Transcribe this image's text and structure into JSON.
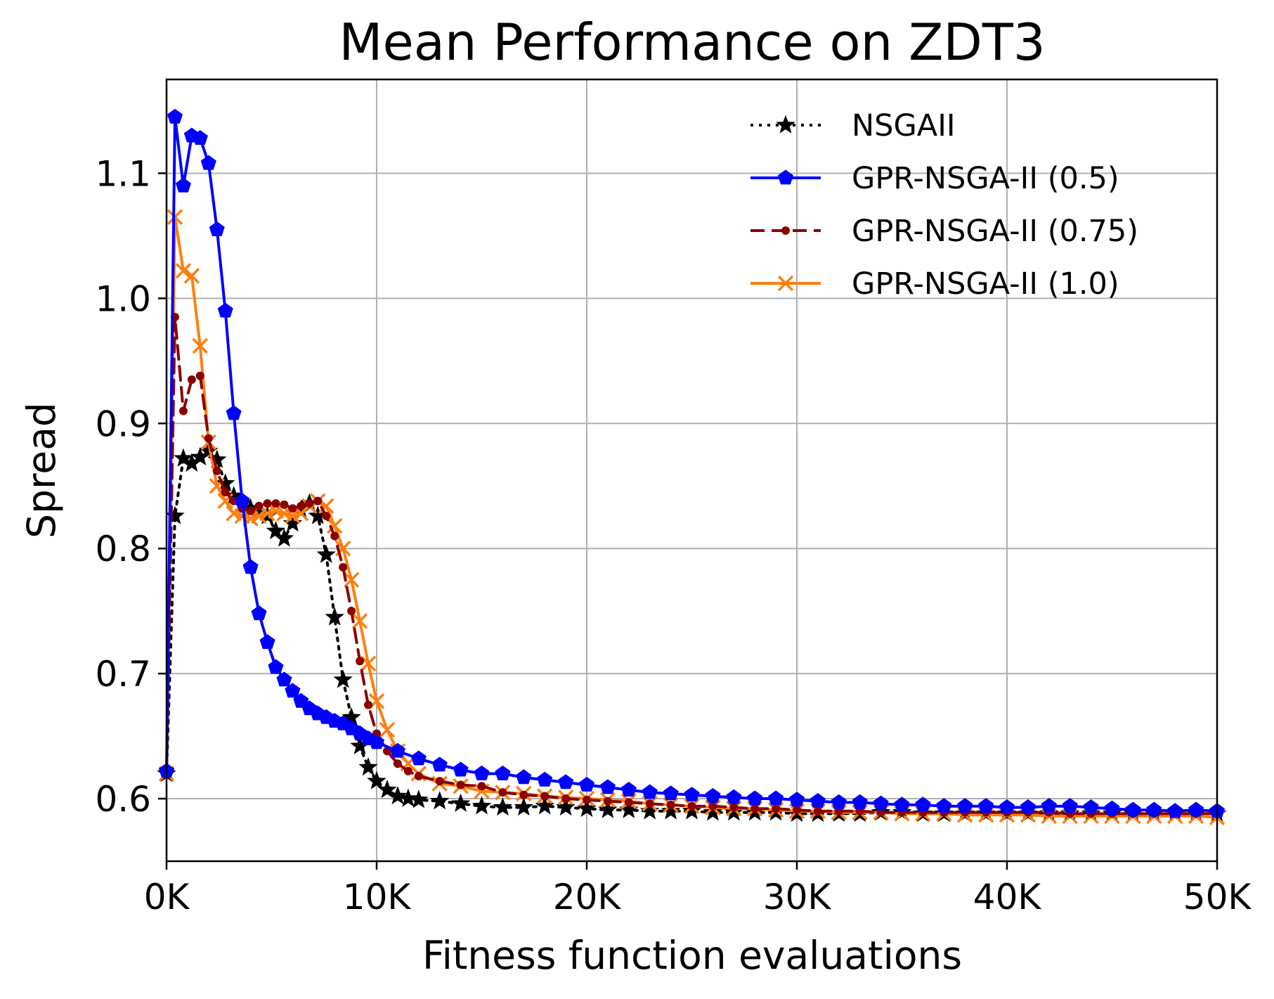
{
  "chart_data": {
    "type": "line",
    "title": "Mean Performance on ZDT3",
    "xlabel": "Fitness function evaluations",
    "ylabel": "Spread",
    "xlim": [
      0,
      50000
    ],
    "ylim": [
      0.55,
      1.175
    ],
    "grid": true,
    "legend_position": "top-right",
    "x_ticks": [
      {
        "value": 0,
        "label": "0K"
      },
      {
        "value": 10000,
        "label": "10K"
      },
      {
        "value": 20000,
        "label": "20K"
      },
      {
        "value": 30000,
        "label": "30K"
      },
      {
        "value": 40000,
        "label": "40K"
      },
      {
        "value": 50000,
        "label": "50K"
      }
    ],
    "y_ticks": [
      {
        "value": 0.6,
        "label": "0.6"
      },
      {
        "value": 0.7,
        "label": "0.7"
      },
      {
        "value": 0.8,
        "label": "0.8"
      },
      {
        "value": 0.9,
        "label": "0.9"
      },
      {
        "value": 1.0,
        "label": "1.0"
      },
      {
        "value": 1.1,
        "label": "1.1"
      }
    ],
    "series": [
      {
        "name": "NSGAII",
        "color": "#000000",
        "line_style": "dotted",
        "marker": "star",
        "x": [
          0,
          400,
          800,
          1200,
          1600,
          2000,
          2400,
          2800,
          3200,
          3600,
          4000,
          4400,
          4800,
          5200,
          5600,
          6000,
          6400,
          6800,
          7200,
          7600,
          8000,
          8400,
          8800,
          9200,
          9600,
          10000,
          10500,
          11000,
          11500,
          12000,
          13000,
          14000,
          15000,
          16000,
          17000,
          18000,
          19000,
          20000,
          21000,
          22000,
          23000,
          24000,
          25000,
          26000,
          27000,
          28000,
          29000,
          30000,
          31000,
          32000,
          33000,
          34000,
          35000,
          36000,
          37000,
          38000,
          39000,
          40000,
          41000,
          42000,
          43000,
          44000,
          45000,
          46000,
          47000,
          48000,
          49000,
          50000
        ],
        "values": [
          0.62,
          0.826,
          0.872,
          0.868,
          0.873,
          0.878,
          0.871,
          0.852,
          0.842,
          0.836,
          0.832,
          0.828,
          0.826,
          0.814,
          0.808,
          0.82,
          0.83,
          0.836,
          0.826,
          0.795,
          0.745,
          0.695,
          0.665,
          0.642,
          0.625,
          0.614,
          0.607,
          0.602,
          0.6,
          0.599,
          0.598,
          0.596,
          0.594,
          0.593,
          0.593,
          0.594,
          0.593,
          0.592,
          0.591,
          0.591,
          0.59,
          0.59,
          0.59,
          0.589,
          0.589,
          0.589,
          0.589,
          0.588,
          0.588,
          0.588,
          0.588,
          0.589,
          0.589,
          0.588,
          0.588,
          0.588,
          0.588,
          0.588,
          0.588,
          0.588,
          0.588,
          0.588,
          0.588,
          0.588,
          0.588,
          0.588,
          0.588,
          0.588
        ]
      },
      {
        "name": "GPR-NSGA-II (0.5)",
        "color": "#0000ff",
        "line_style": "solid",
        "marker": "pentagon",
        "x": [
          0,
          400,
          800,
          1200,
          1600,
          2000,
          2400,
          2800,
          3200,
          3600,
          4000,
          4400,
          4800,
          5200,
          5600,
          6000,
          6400,
          6800,
          7200,
          7600,
          8000,
          8400,
          8800,
          9200,
          9600,
          10000,
          11000,
          12000,
          13000,
          14000,
          15000,
          16000,
          17000,
          18000,
          19000,
          20000,
          21000,
          22000,
          23000,
          24000,
          25000,
          26000,
          27000,
          28000,
          29000,
          30000,
          31000,
          32000,
          33000,
          34000,
          35000,
          36000,
          37000,
          38000,
          39000,
          40000,
          41000,
          42000,
          43000,
          44000,
          45000,
          46000,
          47000,
          48000,
          49000,
          50000
        ],
        "values": [
          0.622,
          1.145,
          1.09,
          1.13,
          1.128,
          1.108,
          1.055,
          0.99,
          0.908,
          0.838,
          0.785,
          0.748,
          0.725,
          0.705,
          0.695,
          0.686,
          0.678,
          0.672,
          0.668,
          0.665,
          0.662,
          0.66,
          0.656,
          0.652,
          0.648,
          0.645,
          0.638,
          0.632,
          0.627,
          0.623,
          0.62,
          0.62,
          0.617,
          0.615,
          0.613,
          0.611,
          0.609,
          0.607,
          0.605,
          0.604,
          0.603,
          0.602,
          0.601,
          0.6,
          0.6,
          0.599,
          0.598,
          0.597,
          0.597,
          0.596,
          0.595,
          0.595,
          0.594,
          0.594,
          0.594,
          0.593,
          0.593,
          0.594,
          0.594,
          0.593,
          0.592,
          0.591,
          0.591,
          0.59,
          0.591,
          0.59
        ]
      },
      {
        "name": "GPR-NSGA-II (0.75)",
        "color": "#8b0000",
        "line_style": "dashed",
        "marker": "circle",
        "x": [
          0,
          400,
          800,
          1200,
          1600,
          2000,
          2400,
          2800,
          3200,
          3600,
          4000,
          4400,
          4800,
          5200,
          5600,
          6000,
          6400,
          6800,
          7200,
          7600,
          8000,
          8400,
          8800,
          9200,
          9600,
          10000,
          10500,
          11000,
          11500,
          12000,
          13000,
          14000,
          15000,
          16000,
          17000,
          18000,
          19000,
          20000,
          21000,
          22000,
          23000,
          24000,
          25000,
          26000,
          27000,
          28000,
          29000,
          30000,
          31000,
          32000,
          33000,
          34000,
          35000,
          36000,
          37000,
          38000,
          39000,
          40000,
          41000,
          42000,
          43000,
          44000,
          45000,
          46000,
          47000,
          48000,
          49000,
          50000
        ],
        "values": [
          0.62,
          0.985,
          0.91,
          0.935,
          0.938,
          0.888,
          0.862,
          0.845,
          0.838,
          0.832,
          0.83,
          0.834,
          0.836,
          0.836,
          0.835,
          0.832,
          0.834,
          0.836,
          0.838,
          0.826,
          0.81,
          0.785,
          0.75,
          0.71,
          0.675,
          0.652,
          0.638,
          0.628,
          0.622,
          0.618,
          0.614,
          0.611,
          0.61,
          0.605,
          0.603,
          0.602,
          0.6,
          0.599,
          0.598,
          0.597,
          0.596,
          0.595,
          0.594,
          0.594,
          0.593,
          0.592,
          0.592,
          0.591,
          0.59,
          0.59,
          0.59,
          0.589,
          0.589,
          0.589,
          0.589,
          0.589,
          0.589,
          0.589,
          0.589,
          0.589,
          0.588,
          0.588,
          0.588,
          0.588,
          0.588,
          0.588,
          0.588,
          0.588
        ]
      },
      {
        "name": "GPR-NSGA-II (1.0)",
        "color": "#ff7f0e",
        "line_style": "solid",
        "marker": "x",
        "x": [
          0,
          400,
          800,
          1200,
          1600,
          2000,
          2400,
          2800,
          3200,
          3600,
          4000,
          4400,
          4800,
          5200,
          5600,
          6000,
          6400,
          6800,
          7200,
          7600,
          8000,
          8400,
          8800,
          9200,
          9600,
          10000,
          10500,
          11000,
          11500,
          12000,
          13000,
          14000,
          15000,
          16000,
          17000,
          18000,
          19000,
          20000,
          21000,
          22000,
          23000,
          24000,
          25000,
          26000,
          27000,
          28000,
          29000,
          30000,
          31000,
          32000,
          33000,
          34000,
          35000,
          36000,
          37000,
          38000,
          39000,
          40000,
          41000,
          42000,
          43000,
          44000,
          45000,
          46000,
          47000,
          48000,
          49000,
          50000
        ],
        "values": [
          0.62,
          1.065,
          1.022,
          1.018,
          0.962,
          0.885,
          0.85,
          0.838,
          0.828,
          0.826,
          0.824,
          0.826,
          0.828,
          0.83,
          0.828,
          0.826,
          0.828,
          0.834,
          0.838,
          0.834,
          0.818,
          0.8,
          0.775,
          0.742,
          0.708,
          0.678,
          0.655,
          0.638,
          0.628,
          0.62,
          0.612,
          0.61,
          0.606,
          0.605,
          0.604,
          0.602,
          0.601,
          0.6,
          0.599,
          0.598,
          0.596,
          0.595,
          0.594,
          0.593,
          0.592,
          0.592,
          0.591,
          0.59,
          0.59,
          0.589,
          0.589,
          0.589,
          0.588,
          0.588,
          0.588,
          0.587,
          0.587,
          0.587,
          0.587,
          0.586,
          0.586,
          0.586,
          0.586,
          0.586,
          0.586,
          0.586,
          0.586,
          0.585
        ]
      }
    ]
  }
}
